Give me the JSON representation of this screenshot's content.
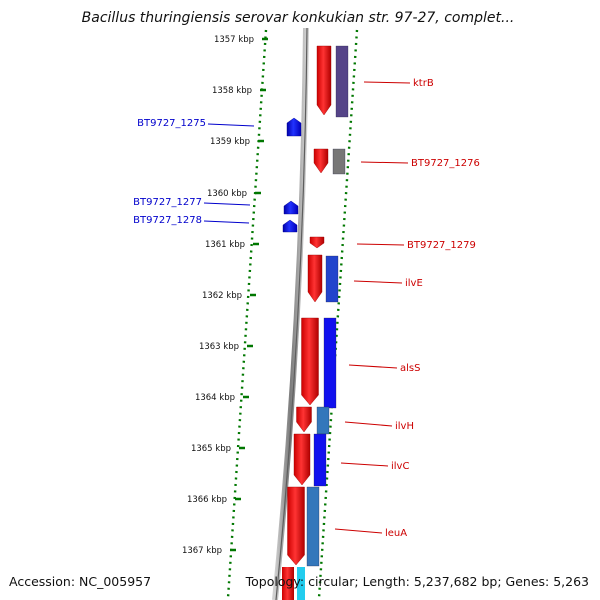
{
  "title": "Bacillus thuringiensis serovar konkukian str. 97-27, complet...",
  "footer": {
    "accession": "Accession: NC_005957",
    "summary": "Topology: circular; Length: 5,237,682 bp; Genes: 5,263"
  },
  "colors": {
    "forward_label": "#0000cc",
    "reverse_label": "#cc0000",
    "cds": "#ff0000",
    "ruler": "#007700",
    "backbone": "#888888"
  },
  "ruler": {
    "ticks": [
      "1357 kbp",
      "1358 kbp",
      "1359 kbp",
      "1360 kbp",
      "1361 kbp",
      "1362 kbp",
      "1363 kbp",
      "1364 kbp",
      "1365 kbp",
      "1366 kbp",
      "1367 kbp"
    ]
  },
  "genes_left": [
    {
      "label": "BT9727_1275",
      "strand": "+"
    },
    {
      "label": "BT9727_1277",
      "strand": "+"
    },
    {
      "label": "BT9727_1278",
      "strand": "+"
    }
  ],
  "genes_right": [
    {
      "label": "ktrB",
      "strand": "-",
      "cog": "#554488"
    },
    {
      "label": "BT9727_1276",
      "strand": "-",
      "cog": "#777777"
    },
    {
      "label": "BT9727_1279",
      "strand": "-",
      "cog": ""
    },
    {
      "label": "ilvE",
      "strand": "-",
      "cog": "#2244cc"
    },
    {
      "label": "alsS",
      "strand": "-",
      "cog": "#1111ee"
    },
    {
      "label": "ilvH",
      "strand": "-",
      "cog": "#3377bb"
    },
    {
      "label": "ilvC",
      "strand": "-",
      "cog": "#1111ee"
    },
    {
      "label": "leuA",
      "strand": "-",
      "cog": "#3377bb"
    }
  ]
}
